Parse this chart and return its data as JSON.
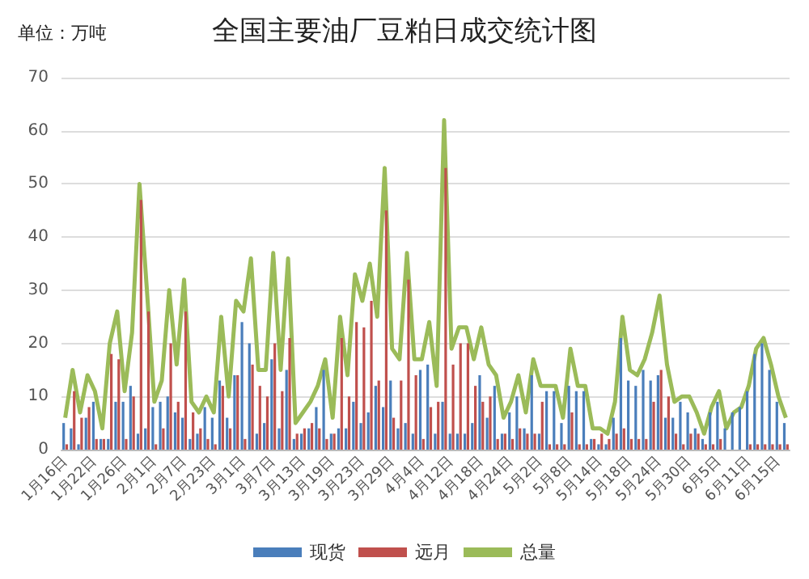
{
  "chart_data": {
    "type": "bar",
    "title": "全国主要油厂豆粕日成交统计图",
    "ylabel": "单位：万吨",
    "categories": [
      "1月16日",
      null,
      null,
      null,
      "1月22日",
      null,
      null,
      null,
      "1月26日",
      null,
      null,
      null,
      "2月1日",
      null,
      null,
      null,
      "2月7日",
      null,
      null,
      null,
      "2月23日",
      null,
      null,
      null,
      "3月1日",
      null,
      null,
      null,
      "3月7日",
      null,
      null,
      null,
      "3月13日",
      null,
      null,
      null,
      "3月19日",
      null,
      null,
      null,
      "3月23日",
      null,
      null,
      null,
      "3月29日",
      null,
      null,
      null,
      "4月4日",
      null,
      null,
      null,
      "4月12日",
      null,
      null,
      null,
      "4月18日",
      null,
      null,
      null,
      "4月24日",
      null,
      null,
      null,
      "5月2日",
      null,
      null,
      null,
      "5月8日",
      null,
      null,
      null,
      "5月14日",
      null,
      null,
      null,
      "5月18日",
      null,
      null,
      null,
      "5月24日",
      null,
      null,
      null,
      "5月30日",
      null,
      null,
      null,
      "6月5日",
      null,
      null,
      null,
      "6月11日",
      null,
      null,
      null,
      "6月15日",
      null
    ],
    "series": [
      {
        "name": "现货",
        "color": "#4a7ebb",
        "values": [
          5,
          4,
          1,
          6,
          9,
          2,
          2,
          9,
          9,
          12,
          3,
          4,
          8,
          9,
          10,
          7,
          6,
          2,
          3,
          8,
          6,
          13,
          6,
          14,
          24,
          20,
          3,
          5,
          17,
          4,
          15,
          2,
          3,
          4,
          8,
          15,
          3,
          4,
          4,
          9,
          5,
          7,
          12,
          8,
          13,
          4,
          5,
          3,
          15,
          16,
          3,
          9,
          3,
          3,
          3,
          5,
          14,
          6,
          12,
          3,
          7,
          10,
          4,
          14,
          3,
          11,
          11,
          5,
          12,
          11,
          11,
          2,
          1,
          1,
          6,
          21,
          13,
          12,
          15,
          13,
          14,
          6,
          6,
          9,
          7,
          4,
          2,
          7,
          9,
          4,
          7,
          8,
          11,
          18,
          20,
          15,
          9,
          5
        ]
      },
      {
        "name": "远月",
        "color": "#c0504d",
        "values": [
          1,
          11,
          6,
          8,
          2,
          2,
          18,
          17,
          2,
          10,
          47,
          26,
          1,
          4,
          20,
          9,
          26,
          7,
          4,
          2,
          1,
          12,
          4,
          14,
          2,
          16,
          12,
          10,
          20,
          11,
          21,
          3,
          4,
          5,
          4,
          2,
          3,
          21,
          10,
          24,
          23,
          28,
          13,
          45,
          6,
          13,
          32,
          14,
          2,
          8,
          9,
          53,
          16,
          20,
          20,
          12,
          9,
          10,
          2,
          3,
          2,
          4,
          3,
          3,
          9,
          1,
          1,
          1,
          7,
          1,
          1,
          2,
          3,
          2,
          3,
          4,
          2,
          2,
          2,
          9,
          15,
          10,
          3,
          1,
          3,
          3,
          1,
          1,
          2,
          0,
          0,
          0,
          1,
          1,
          1,
          1,
          1,
          1
        ]
      },
      {
        "name": "总量",
        "type": "line",
        "color": "#9bbb59",
        "values": [
          6,
          15,
          7,
          14,
          11,
          4,
          20,
          26,
          11,
          22,
          50,
          30,
          9,
          13,
          30,
          16,
          32,
          9,
          7,
          10,
          7,
          25,
          10,
          28,
          26,
          36,
          15,
          15,
          37,
          15,
          36,
          5,
          7,
          9,
          12,
          17,
          6,
          25,
          14,
          33,
          28,
          35,
          25,
          53,
          19,
          17,
          37,
          17,
          17,
          24,
          12,
          62,
          19,
          23,
          23,
          17,
          23,
          16,
          14,
          6,
          9,
          14,
          7,
          17,
          12,
          12,
          12,
          6,
          19,
          12,
          12,
          4,
          4,
          3,
          9,
          25,
          15,
          14,
          17,
          22,
          29,
          16,
          9,
          10,
          10,
          7,
          3,
          8,
          11,
          4,
          7,
          8,
          12,
          19,
          21,
          16,
          10,
          6
        ]
      }
    ],
    "ylim": [
      0,
      70
    ],
    "yticks": [
      0,
      10,
      20,
      30,
      40,
      50,
      60,
      70
    ],
    "grid": "y",
    "legend": "bottom",
    "marker": "none"
  }
}
